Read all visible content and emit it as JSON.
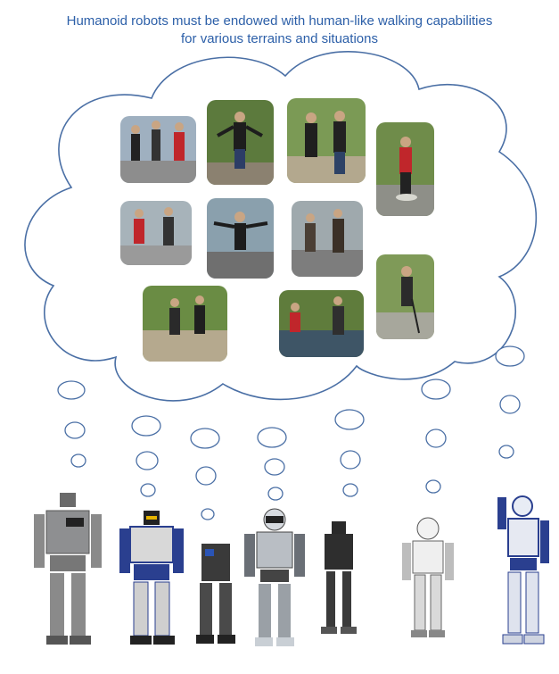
{
  "caption": {
    "line1": "Humanoid robots must be endowed with human-like walking capabilities",
    "line2": "for various terrains and situations"
  },
  "photo_labels": [
    "group-walking-photo",
    "balance-walk-photo",
    "couple-walking-photo",
    "stepping-stone-photo",
    "two-men-walking-photo",
    "arms-out-walk-photo",
    "stairs-walk-photo",
    "cane-walk-photo",
    "path-walk-photo",
    "pond-step-photo"
  ],
  "robot_labels": [
    "robot-1",
    "robot-2",
    "robot-3",
    "robot-4",
    "robot-5",
    "robot-6",
    "robot-7"
  ],
  "colors": {
    "caption": "#2c5fa8",
    "cloud_stroke": "#4a6fa5",
    "bubble_stroke": "#4a6fa5"
  }
}
